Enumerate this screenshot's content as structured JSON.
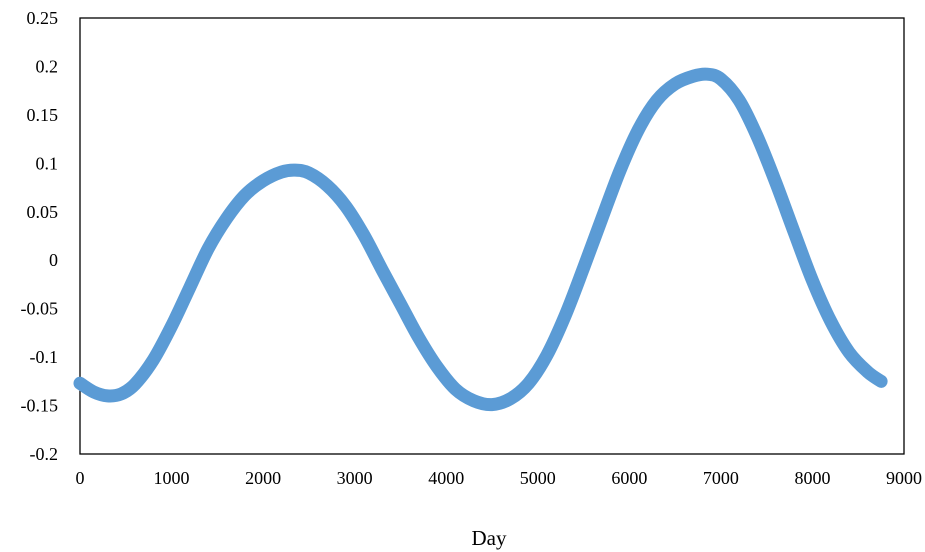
{
  "chart_data": {
    "type": "line",
    "title": "",
    "xlabel": "Day",
    "ylabel": "",
    "xlim": [
      0,
      9000
    ],
    "ylim": [
      -0.2,
      0.25
    ],
    "xticks": [
      0,
      1000,
      2000,
      3000,
      4000,
      5000,
      6000,
      7000,
      8000,
      9000
    ],
    "yticks": [
      -0.2,
      -0.15,
      -0.1,
      -0.05,
      0,
      0.05,
      0.1,
      0.15,
      0.2,
      0.25
    ],
    "xtick_labels": [
      "0",
      "1000",
      "2000",
      "3000",
      "4000",
      "5000",
      "6000",
      "7000",
      "8000",
      "9000"
    ],
    "ytick_labels": [
      "-0.2",
      "-0.15",
      "-0.1",
      "-0.05",
      "0",
      "0.05",
      "0.1",
      "0.15",
      "0.2",
      "0.25"
    ],
    "grid": false,
    "legend": "none",
    "series": [
      {
        "color": "#5b9bd5",
        "x": [
          0,
          150,
          300,
          450,
          600,
          800,
          1000,
          1200,
          1400,
          1600,
          1800,
          2000,
          2200,
          2350,
          2500,
          2700,
          2900,
          3100,
          3300,
          3500,
          3700,
          3900,
          4100,
          4300,
          4500,
          4700,
          4900,
          5100,
          5300,
          5500,
          5700,
          5900,
          6100,
          6300,
          6500,
          6700,
          6850,
          7000,
          7200,
          7400,
          7600,
          7800,
          8000,
          8200,
          8400,
          8600,
          8750
        ],
        "y": [
          -0.127,
          -0.136,
          -0.14,
          -0.138,
          -0.128,
          -0.103,
          -0.068,
          -0.028,
          0.012,
          0.043,
          0.067,
          0.082,
          0.091,
          0.093,
          0.09,
          0.077,
          0.056,
          0.026,
          -0.01,
          -0.045,
          -0.08,
          -0.11,
          -0.133,
          -0.145,
          -0.149,
          -0.143,
          -0.127,
          -0.098,
          -0.057,
          -0.008,
          0.043,
          0.093,
          0.135,
          0.165,
          0.182,
          0.19,
          0.192,
          0.187,
          0.165,
          0.127,
          0.08,
          0.029,
          -0.021,
          -0.063,
          -0.095,
          -0.115,
          -0.125
        ]
      }
    ]
  }
}
